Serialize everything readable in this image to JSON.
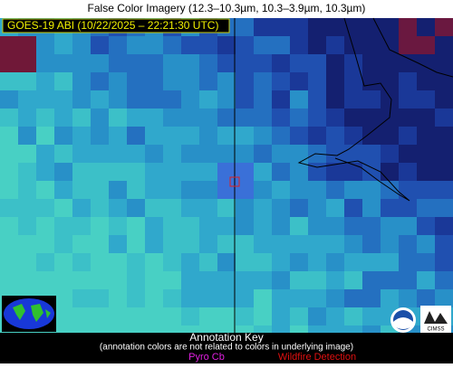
{
  "header": {
    "title": "False Color Imagery (12.3–10.3µm, 10.3–3.9µm, 10.3µm)"
  },
  "overlay": {
    "timestamp": "GOES-19 ABI (10/22/2025 – 22:21:30 UTC)"
  },
  "annotation_key": {
    "title": "Annotation Key",
    "note": "(annotation colors are not related to colors in underlying image)",
    "items": [
      "Pyro Cb",
      "Wildfire Detection"
    ]
  },
  "logos": {
    "cimss": "CIMSS"
  }
}
